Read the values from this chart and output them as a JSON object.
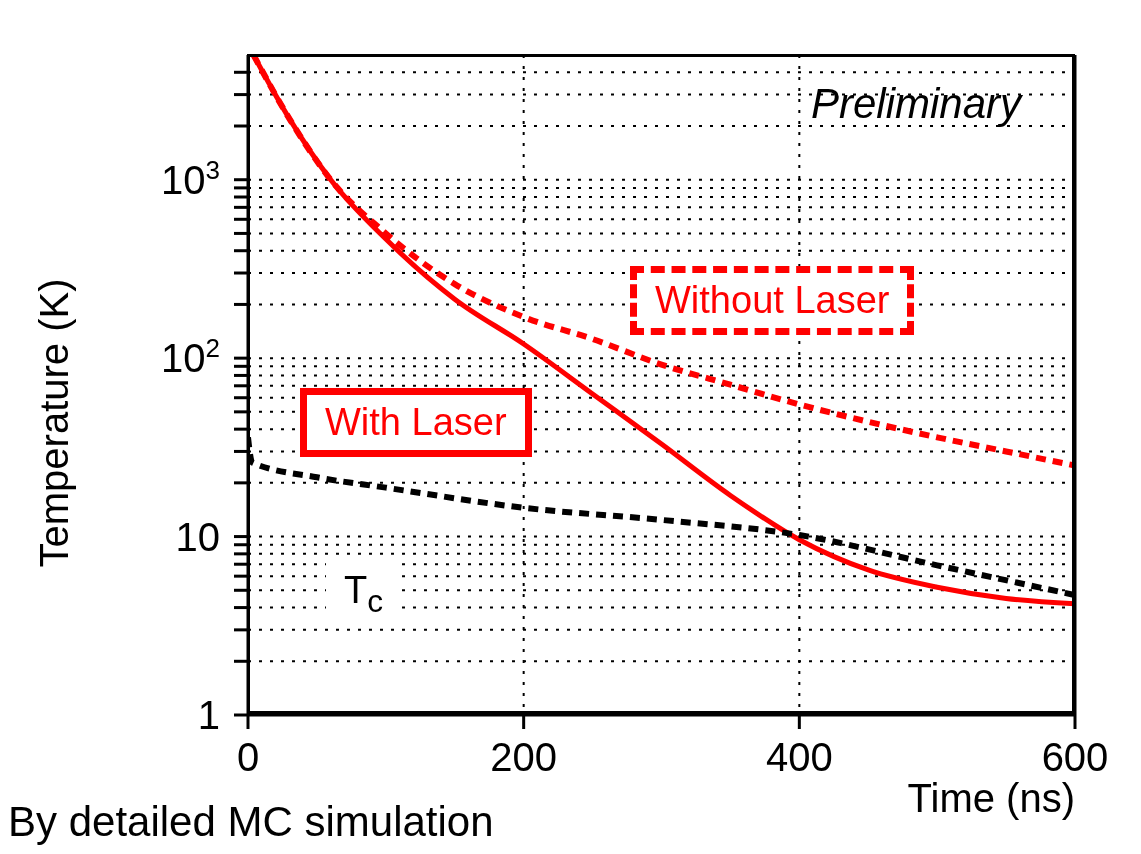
{
  "chart_data": {
    "type": "line",
    "xlabel": "Time (ns)",
    "ylabel": "Temperature (K)",
    "annotations": [
      "Preliminary",
      "By detailed MC simulation"
    ],
    "log": "y",
    "grid": true,
    "marker": "none",
    "xlim": [
      0,
      600
    ],
    "xticks": [
      0,
      200,
      400,
      600
    ],
    "ylim": [
      1,
      5000
    ],
    "yticks": [
      1,
      {
        "value": 2,
        "label": null
      },
      {
        "value": 3,
        "label": null
      },
      {
        "value": 4,
        "label": null
      },
      {
        "value": 5,
        "label": null
      },
      {
        "value": 6,
        "label": null
      },
      {
        "value": 7,
        "label": null
      },
      {
        "value": 8,
        "label": null
      },
      {
        "value": 9,
        "label": null
      },
      10,
      {
        "value": 20,
        "label": null
      },
      {
        "value": 30,
        "label": null
      },
      {
        "value": 40,
        "label": null
      },
      {
        "value": 50,
        "label": null
      },
      {
        "value": 60,
        "label": null
      },
      {
        "value": 70,
        "label": null
      },
      {
        "value": 80,
        "label": null
      },
      {
        "value": 90,
        "label": null
      },
      {
        "value": 100,
        "label": "10$^{2}$"
      },
      {
        "value": 200,
        "label": null
      },
      {
        "value": 300,
        "label": null
      },
      {
        "value": 400,
        "label": null
      },
      {
        "value": 500,
        "label": null
      },
      {
        "value": 600,
        "label": null
      },
      {
        "value": 700,
        "label": null
      },
      {
        "value": 800,
        "label": null
      },
      {
        "value": 900,
        "label": null
      },
      {
        "value": 1000,
        "label": "10$^{3}$"
      },
      {
        "value": 2000,
        "label": null
      },
      {
        "value": 3000,
        "label": null
      },
      {
        "value": 4000,
        "label": null
      }
    ],
    "series": [
      {
        "name": "With Laser",
        "color": "#ff0000",
        "line_style": "solid",
        "x": [
          4,
          30,
          60,
          100,
          150,
          200,
          250,
          300,
          350,
          400,
          450,
          500,
          550,
          600
        ],
        "values": [
          5000,
          2200,
          1000,
          465,
          214,
          120,
          63,
          33,
          17,
          9.6,
          6.5,
          5.2,
          4.5,
          4.2
        ]
      },
      {
        "name": "Without Laser",
        "color": "#ff0000",
        "line_style": "dashed",
        "x": [
          4,
          30,
          60,
          100,
          150,
          200,
          250,
          300,
          350,
          400,
          450,
          500,
          550,
          600
        ],
        "values": [
          5000,
          2200,
          1000,
          500,
          260,
          170,
          128,
          92,
          71,
          55,
          44,
          36,
          30,
          25
        ]
      },
      {
        "name": "T$_{c}$",
        "color": "#000000",
        "line_style": "dashed",
        "x": [
          0,
          3,
          50,
          100,
          200,
          300,
          400,
          500,
          600
        ],
        "values": [
          36,
          26,
          21.5,
          18.8,
          14.5,
          12.4,
          10.2,
          6.9,
          4.7
        ]
      }
    ]
  }
}
